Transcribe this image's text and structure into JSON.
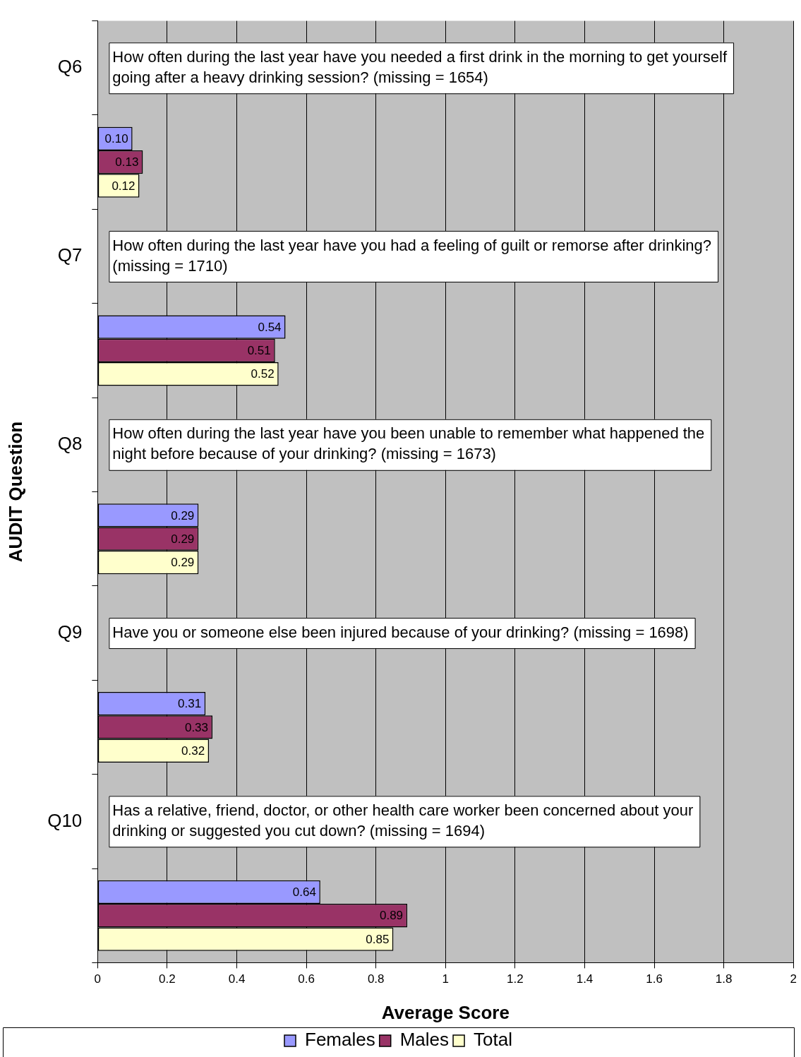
{
  "chart_data": {
    "type": "bar",
    "orientation": "horizontal",
    "xlabel": "Average Score",
    "ylabel": "AUDIT Question",
    "categories": [
      "Q6",
      null,
      "Q7",
      null,
      "Q8",
      null,
      "Q9",
      null,
      "Q10",
      null
    ],
    "series": [
      {
        "name": "Females",
        "color": "#9999ff",
        "values": [
          null,
          0.1,
          null,
          0.54,
          null,
          0.29,
          null,
          0.31,
          null,
          0.64
        ],
        "value_labels": [
          null,
          "0.10",
          null,
          "0.54",
          null,
          "0.29",
          null,
          "0.31",
          null,
          "0.64"
        ]
      },
      {
        "name": "Males",
        "color": "#993366",
        "values": [
          null,
          0.13,
          null,
          0.51,
          null,
          0.29,
          null,
          0.33,
          null,
          0.89
        ],
        "value_labels": [
          null,
          "0.13",
          null,
          "0.51",
          null,
          "0.29",
          null,
          "0.33",
          null,
          "0.89"
        ]
      },
      {
        "name": "Total",
        "color": "#ffffcc",
        "values": [
          null,
          0.12,
          null,
          0.52,
          null,
          0.29,
          null,
          0.32,
          null,
          0.85
        ],
        "value_labels": [
          null,
          "0.12",
          null,
          "0.52",
          null,
          "0.29",
          null,
          "0.32",
          null,
          "0.85"
        ]
      }
    ],
    "xlim": [
      0,
      2
    ],
    "xticks": [
      0,
      0.2,
      0.4,
      0.6,
      0.8,
      1,
      1.2,
      1.4,
      1.6,
      1.8,
      2
    ],
    "grid": "x",
    "legend": "bottom",
    "annotations": [
      "How often during the last year have you needed a first drink in the morning to get yourself going after a heavy drinking session? (missing = 1654)",
      "How often during the last year have you had a feeling of guilt or remorse after drinking? (missing = 1710)",
      "How often during the last year have you been unable to remember what happened the night before because of your drinking? (missing = 1673)",
      "Have you or someone else been injured because of your drinking? (missing = 1698)",
      "Has a relative, friend, doctor, or other health care worker been concerned about your drinking or suggested you cut down? (missing = 1694)"
    ]
  }
}
